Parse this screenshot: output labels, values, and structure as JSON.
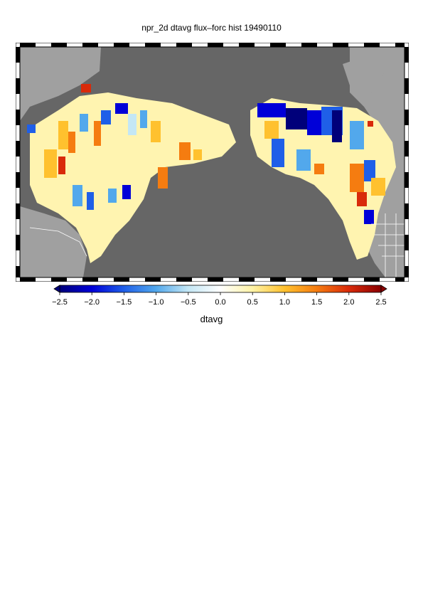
{
  "title": "npr_2d dtavg flux–forc hist 19490110",
  "colorbar": {
    "label": "dtavg",
    "ticks": [
      "−2.5",
      "−2.0",
      "−1.5",
      "−1.0",
      "−0.5",
      "0.0",
      "0.5",
      "1.0",
      "1.5",
      "2.0",
      "2.5"
    ],
    "range": [
      -2.5,
      2.5
    ],
    "colors": [
      "#00007a",
      "#0000d8",
      "#1f5fe8",
      "#52a8ec",
      "#c4e7f5",
      "#ffffff",
      "#fff3a6",
      "#ffc12e",
      "#f57c10",
      "#d92a0a",
      "#8a0000"
    ]
  },
  "map_colors": {
    "ocean": "#666666",
    "land_outside": "#a0a0a0",
    "border": "#ffffff"
  }
}
